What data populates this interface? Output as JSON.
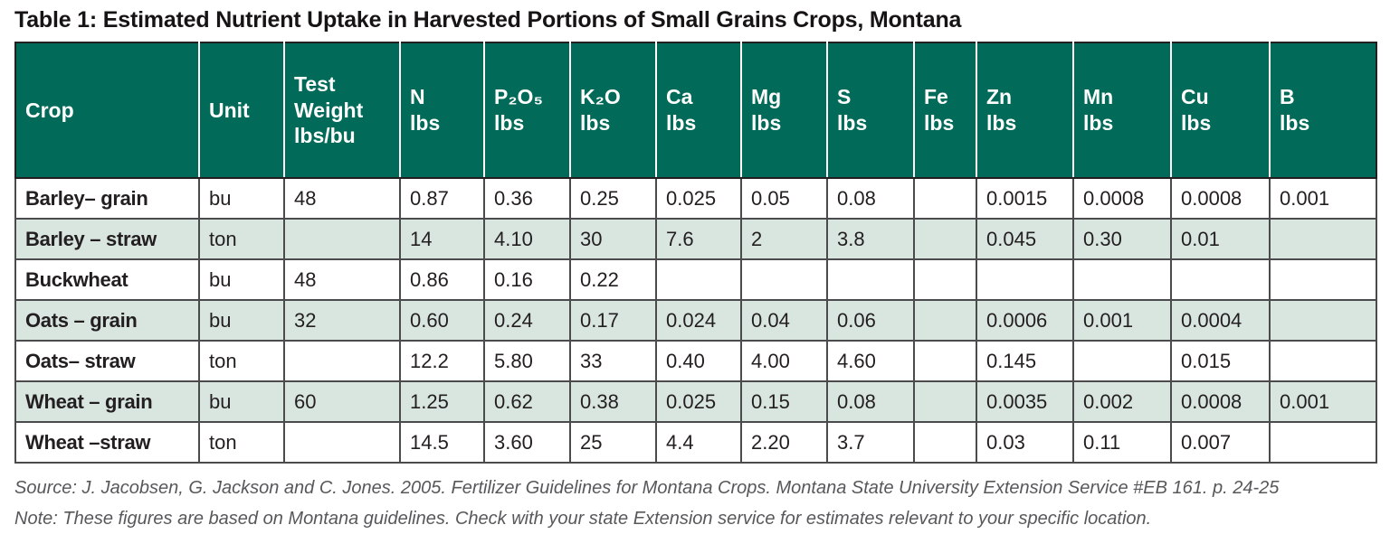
{
  "title": "Table 1: Estimated Nutrient Uptake in Harvested Portions of Small Grains Crops, Montana",
  "table": {
    "columns": [
      "Crop",
      "Unit",
      "Test\nWeight\nlbs/bu",
      "N\nlbs",
      "P₂O₅\nlbs",
      "K₂O\nlbs",
      "Ca\nlbs",
      "Mg\nlbs",
      "S\nlbs",
      "Fe\nlbs",
      "Zn\nlbs",
      "Mn\nlbs",
      "Cu\nlbs",
      "B\nlbs"
    ],
    "column_keys": [
      "crop",
      "unit",
      "test-weight",
      "n",
      "p2o5",
      "k2o",
      "ca",
      "mg",
      "s",
      "fe",
      "zn",
      "mn",
      "cu",
      "b"
    ],
    "rows": [
      [
        "Barley– grain",
        "bu",
        "48",
        "0.87",
        "0.36",
        "0.25",
        "0.025",
        "0.05",
        "0.08",
        "",
        "0.0015",
        "0.0008",
        "0.0008",
        "0.001"
      ],
      [
        "Barley – straw",
        "ton",
        "",
        "14",
        "4.10",
        "30",
        "7.6",
        "2",
        "3.8",
        "",
        "0.045",
        "0.30",
        "0.01",
        ""
      ],
      [
        "Buckwheat",
        "bu",
        "48",
        "0.86",
        "0.16",
        "0.22",
        "",
        "",
        "",
        "",
        "",
        "",
        "",
        ""
      ],
      [
        "Oats – grain",
        "bu",
        "32",
        "0.60",
        "0.24",
        "0.17",
        "0.024",
        "0.04",
        "0.06",
        "",
        "0.0006",
        "0.001",
        "0.0004",
        ""
      ],
      [
        "Oats– straw",
        "ton",
        "",
        "12.2",
        "5.80",
        "33",
        "0.40",
        "4.00",
        "4.60",
        "",
        "0.145",
        "",
        "0.015",
        ""
      ],
      [
        "Wheat – grain",
        "bu",
        "60",
        "1.25",
        "0.62",
        "0.38",
        "0.025",
        "0.15",
        "0.08",
        "",
        "0.0035",
        "0.002",
        "0.0008",
        "0.001"
      ],
      [
        "Wheat –straw",
        "ton",
        "",
        "14.5",
        "3.60",
        "25",
        "4.4",
        "2.20",
        "3.7",
        "",
        "0.03",
        "0.11",
        "0.007",
        ""
      ]
    ]
  },
  "footer": {
    "source": "Source: J. Jacobsen, G. Jackson and C. Jones. 2005. Fertilizer Guidelines for Montana Crops. Montana State University Extension Service #EB 161. p. 24-25",
    "note": "Note: These figures are based on Montana guidelines. Check with your state Extension service for estimates relevant to your specific location."
  },
  "colors": {
    "header_bg": "#026A58",
    "header_text": "#FFFFFF",
    "alt_row_bg": "#D9E6E0",
    "grid_border": "#4B4B4D",
    "outer_border": "#231F20",
    "body_text": "#231F20",
    "footer_text": "#57585A"
  }
}
